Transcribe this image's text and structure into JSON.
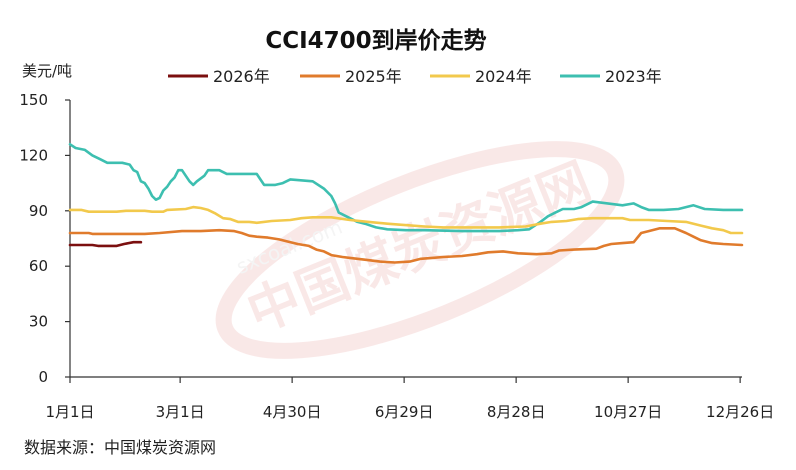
{
  "chart_data": {
    "type": "line",
    "title": "CCI4700到岸价走势",
    "ylabel": "美元/吨",
    "ylim": [
      0,
      150
    ],
    "yticks": [
      0,
      30,
      60,
      90,
      120,
      150
    ],
    "xticks": [
      "1月1日",
      "3月1日",
      "4月30日",
      "6月29日",
      "8月28日",
      "10月27日",
      "12月26日"
    ],
    "xtick_days": [
      0,
      59,
      119,
      179,
      239,
      299,
      359
    ],
    "x_unit": "day of year",
    "legend_position": "top",
    "grid": false,
    "source": "数据来源：中国煤炭资源网",
    "watermark": "中国煤炭资源网",
    "watermark_sub": "sxcoal.com",
    "series": [
      {
        "name": "2026年",
        "color": "#7b0f0f",
        "points": [
          [
            0,
            71.5
          ],
          [
            12,
            71.5
          ],
          [
            15,
            71.0
          ],
          [
            25,
            71.0
          ],
          [
            29,
            72.0
          ],
          [
            34,
            73.0
          ],
          [
            38,
            73.0
          ]
        ]
      },
      {
        "name": "2025年",
        "color": "#e07b2c",
        "points": [
          [
            0,
            78.0
          ],
          [
            10,
            78.0
          ],
          [
            12,
            77.5
          ],
          [
            40,
            77.5
          ],
          [
            48,
            78.0
          ],
          [
            60,
            79.0
          ],
          [
            70,
            79.0
          ],
          [
            80,
            79.5
          ],
          [
            88,
            79.0
          ],
          [
            92,
            78.0
          ],
          [
            96,
            76.5
          ],
          [
            100,
            76.0
          ],
          [
            106,
            75.5
          ],
          [
            112,
            74.5
          ],
          [
            116,
            73.5
          ],
          [
            122,
            72.0
          ],
          [
            128,
            71.0
          ],
          [
            132,
            69.0
          ],
          [
            136,
            68.0
          ],
          [
            140,
            66.0
          ],
          [
            146,
            65.0
          ],
          [
            150,
            64.5
          ],
          [
            158,
            63.5
          ],
          [
            166,
            62.5
          ],
          [
            174,
            62.0
          ],
          [
            182,
            62.5
          ],
          [
            188,
            64.0
          ],
          [
            194,
            64.5
          ],
          [
            200,
            65.0
          ],
          [
            210,
            65.5
          ],
          [
            218,
            66.5
          ],
          [
            224,
            67.5
          ],
          [
            232,
            68.0
          ],
          [
            240,
            67.0
          ],
          [
            250,
            66.5
          ],
          [
            258,
            67.0
          ],
          [
            262,
            68.5
          ],
          [
            270,
            69.0
          ],
          [
            282,
            69.5
          ],
          [
            286,
            71.0
          ],
          [
            290,
            72.0
          ],
          [
            296,
            72.5
          ],
          [
            302,
            73.0
          ],
          [
            306,
            78.0
          ],
          [
            310,
            79.0
          ],
          [
            316,
            80.5
          ],
          [
            324,
            80.5
          ],
          [
            330,
            78.0
          ],
          [
            334,
            76.0
          ],
          [
            338,
            74.0
          ],
          [
            344,
            72.5
          ],
          [
            350,
            72.0
          ],
          [
            360,
            71.5
          ]
        ]
      },
      {
        "name": "2024年",
        "color": "#f2c94c",
        "points": [
          [
            0,
            90.5
          ],
          [
            6,
            90.5
          ],
          [
            10,
            89.5
          ],
          [
            25,
            89.5
          ],
          [
            30,
            90.0
          ],
          [
            40,
            90.0
          ],
          [
            44,
            89.5
          ],
          [
            50,
            89.5
          ],
          [
            52,
            90.5
          ],
          [
            62,
            91.0
          ],
          [
            66,
            92.0
          ],
          [
            70,
            91.5
          ],
          [
            74,
            90.5
          ],
          [
            78,
            88.5
          ],
          [
            82,
            86.0
          ],
          [
            86,
            85.5
          ],
          [
            90,
            84.0
          ],
          [
            96,
            84.0
          ],
          [
            100,
            83.5
          ],
          [
            108,
            84.5
          ],
          [
            118,
            85.0
          ],
          [
            124,
            86.0
          ],
          [
            130,
            86.5
          ],
          [
            140,
            86.5
          ],
          [
            150,
            85.0
          ],
          [
            160,
            84.0
          ],
          [
            170,
            83.0
          ],
          [
            176,
            82.5
          ],
          [
            190,
            81.5
          ],
          [
            200,
            81.0
          ],
          [
            212,
            81.0
          ],
          [
            230,
            81.0
          ],
          [
            244,
            81.5
          ],
          [
            252,
            83.0
          ],
          [
            258,
            84.0
          ],
          [
            266,
            84.5
          ],
          [
            272,
            85.5
          ],
          [
            280,
            86.0
          ],
          [
            296,
            86.0
          ],
          [
            300,
            85.0
          ],
          [
            310,
            85.0
          ],
          [
            320,
            84.5
          ],
          [
            330,
            84.0
          ],
          [
            338,
            82.0
          ],
          [
            344,
            80.5
          ],
          [
            350,
            79.5
          ],
          [
            354,
            78.0
          ],
          [
            360,
            78.0
          ]
        ]
      },
      {
        "name": "2023年",
        "color": "#3dbfb0",
        "points": [
          [
            0,
            126.0
          ],
          [
            3,
            124.0
          ],
          [
            8,
            123.0
          ],
          [
            12,
            120.0
          ],
          [
            16,
            118.0
          ],
          [
            20,
            116.0
          ],
          [
            28,
            116.0
          ],
          [
            32,
            115.0
          ],
          [
            34,
            112.0
          ],
          [
            36,
            111.0
          ],
          [
            38,
            106.0
          ],
          [
            40,
            105.0
          ],
          [
            42,
            102.0
          ],
          [
            44,
            98.0
          ],
          [
            46,
            96.0
          ],
          [
            48,
            97.0
          ],
          [
            50,
            101.0
          ],
          [
            52,
            103.0
          ],
          [
            54,
            106.0
          ],
          [
            56,
            108.0
          ],
          [
            58,
            112.0
          ],
          [
            60,
            112.0
          ],
          [
            62,
            109.0
          ],
          [
            64,
            106.0
          ],
          [
            66,
            104.0
          ],
          [
            68,
            106.0
          ],
          [
            72,
            109.0
          ],
          [
            74,
            112.0
          ],
          [
            80,
            112.0
          ],
          [
            84,
            110.0
          ],
          [
            100,
            110.0
          ],
          [
            102,
            107.0
          ],
          [
            104,
            104.0
          ],
          [
            110,
            104.0
          ],
          [
            114,
            105.0
          ],
          [
            118,
            107.0
          ],
          [
            130,
            106.0
          ],
          [
            136,
            102.0
          ],
          [
            140,
            98.0
          ],
          [
            142,
            94.0
          ],
          [
            144,
            89.0
          ],
          [
            150,
            86.0
          ],
          [
            154,
            84.0
          ],
          [
            158,
            83.0
          ],
          [
            164,
            81.0
          ],
          [
            170,
            80.0
          ],
          [
            180,
            79.5
          ],
          [
            190,
            79.5
          ],
          [
            210,
            79.0
          ],
          [
            230,
            79.0
          ],
          [
            240,
            79.5
          ],
          [
            246,
            80.0
          ],
          [
            252,
            84.0
          ],
          [
            256,
            87.0
          ],
          [
            260,
            89.0
          ],
          [
            264,
            91.0
          ],
          [
            270,
            91.0
          ],
          [
            274,
            92.0
          ],
          [
            280,
            95.0
          ],
          [
            288,
            94.0
          ],
          [
            296,
            93.0
          ],
          [
            302,
            94.0
          ],
          [
            306,
            92.0
          ],
          [
            310,
            90.5
          ],
          [
            318,
            90.5
          ],
          [
            326,
            91.0
          ],
          [
            334,
            93.0
          ],
          [
            340,
            91.0
          ],
          [
            350,
            90.5
          ],
          [
            360,
            90.5
          ]
        ]
      }
    ]
  }
}
